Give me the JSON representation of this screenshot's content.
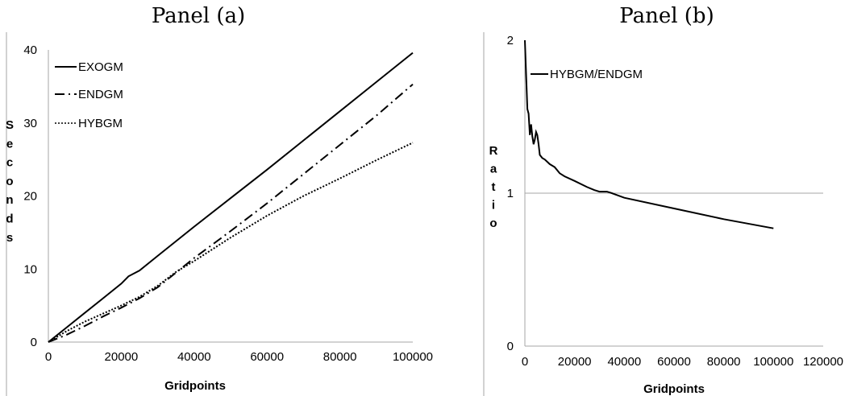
{
  "chart_data": [
    {
      "type": "line",
      "title": "Panel (a)",
      "xlabel": "Gridpoints",
      "ylabel": "Seconds",
      "xlim": [
        0,
        100000
      ],
      "ylim": [
        0,
        40
      ],
      "xticks": [
        "0",
        "20000",
        "40000",
        "60000",
        "80000",
        "100000"
      ],
      "yticks": [
        "0",
        "10",
        "20",
        "30",
        "40"
      ],
      "legend_position": "top-left",
      "series": [
        {
          "name": "EXOGM",
          "style": "solid",
          "x": [
            0,
            5000,
            10000,
            15000,
            20000,
            22000,
            25000,
            30000,
            40000,
            50000,
            60000,
            70000,
            80000,
            90000,
            100000
          ],
          "y": [
            0,
            2.0,
            4.0,
            6.0,
            8.0,
            9.0,
            9.8,
            11.8,
            15.8,
            19.7,
            23.6,
            27.6,
            31.6,
            35.6,
            39.6
          ]
        },
        {
          "name": "ENDGM",
          "style": "dashdot",
          "x": [
            0,
            5000,
            10000,
            15000,
            20000,
            25000,
            30000,
            35000,
            40000,
            50000,
            60000,
            70000,
            80000,
            90000,
            100000
          ],
          "y": [
            0,
            1.0,
            2.2,
            3.5,
            4.7,
            6.0,
            7.5,
            9.5,
            11.5,
            15.2,
            19.0,
            23.0,
            27.0,
            31.0,
            35.3
          ]
        },
        {
          "name": "HYBGM",
          "style": "dotted",
          "x": [
            0,
            5000,
            10000,
            15000,
            20000,
            25000,
            30000,
            35000,
            40000,
            50000,
            60000,
            70000,
            80000,
            90000,
            100000
          ],
          "y": [
            0,
            1.5,
            2.8,
            3.9,
            5.0,
            6.2,
            7.7,
            9.6,
            11.1,
            14.3,
            17.3,
            20.0,
            22.4,
            24.9,
            27.3
          ]
        }
      ]
    },
    {
      "type": "line",
      "title": "Panel (b)",
      "xlabel": "Gridpoints",
      "ylabel": "Ratio",
      "xlim": [
        0,
        120000
      ],
      "ylim": [
        0,
        2
      ],
      "xticks": [
        "0",
        "20000",
        "40000",
        "60000",
        "80000",
        "100000",
        "120000"
      ],
      "yticks": [
        "0",
        "1",
        "2"
      ],
      "reference_line": 1,
      "legend_position": "top-left",
      "series": [
        {
          "name": "HYBGM/ENDGM",
          "style": "solid",
          "x": [
            0,
            500,
            1000,
            1500,
            2000,
            2500,
            3000,
            3500,
            4000,
            4500,
            5000,
            5500,
            6000,
            7000,
            8000,
            10000,
            12000,
            14000,
            16000,
            20000,
            25000,
            28000,
            30000,
            33000,
            35000,
            40000,
            60000,
            80000,
            100000
          ],
          "y": [
            2.0,
            1.78,
            1.55,
            1.52,
            1.38,
            1.45,
            1.37,
            1.32,
            1.35,
            1.4,
            1.38,
            1.32,
            1.25,
            1.23,
            1.22,
            1.19,
            1.17,
            1.13,
            1.11,
            1.08,
            1.04,
            1.02,
            1.01,
            1.01,
            1.0,
            0.97,
            0.9,
            0.83,
            0.77
          ]
        }
      ]
    }
  ]
}
